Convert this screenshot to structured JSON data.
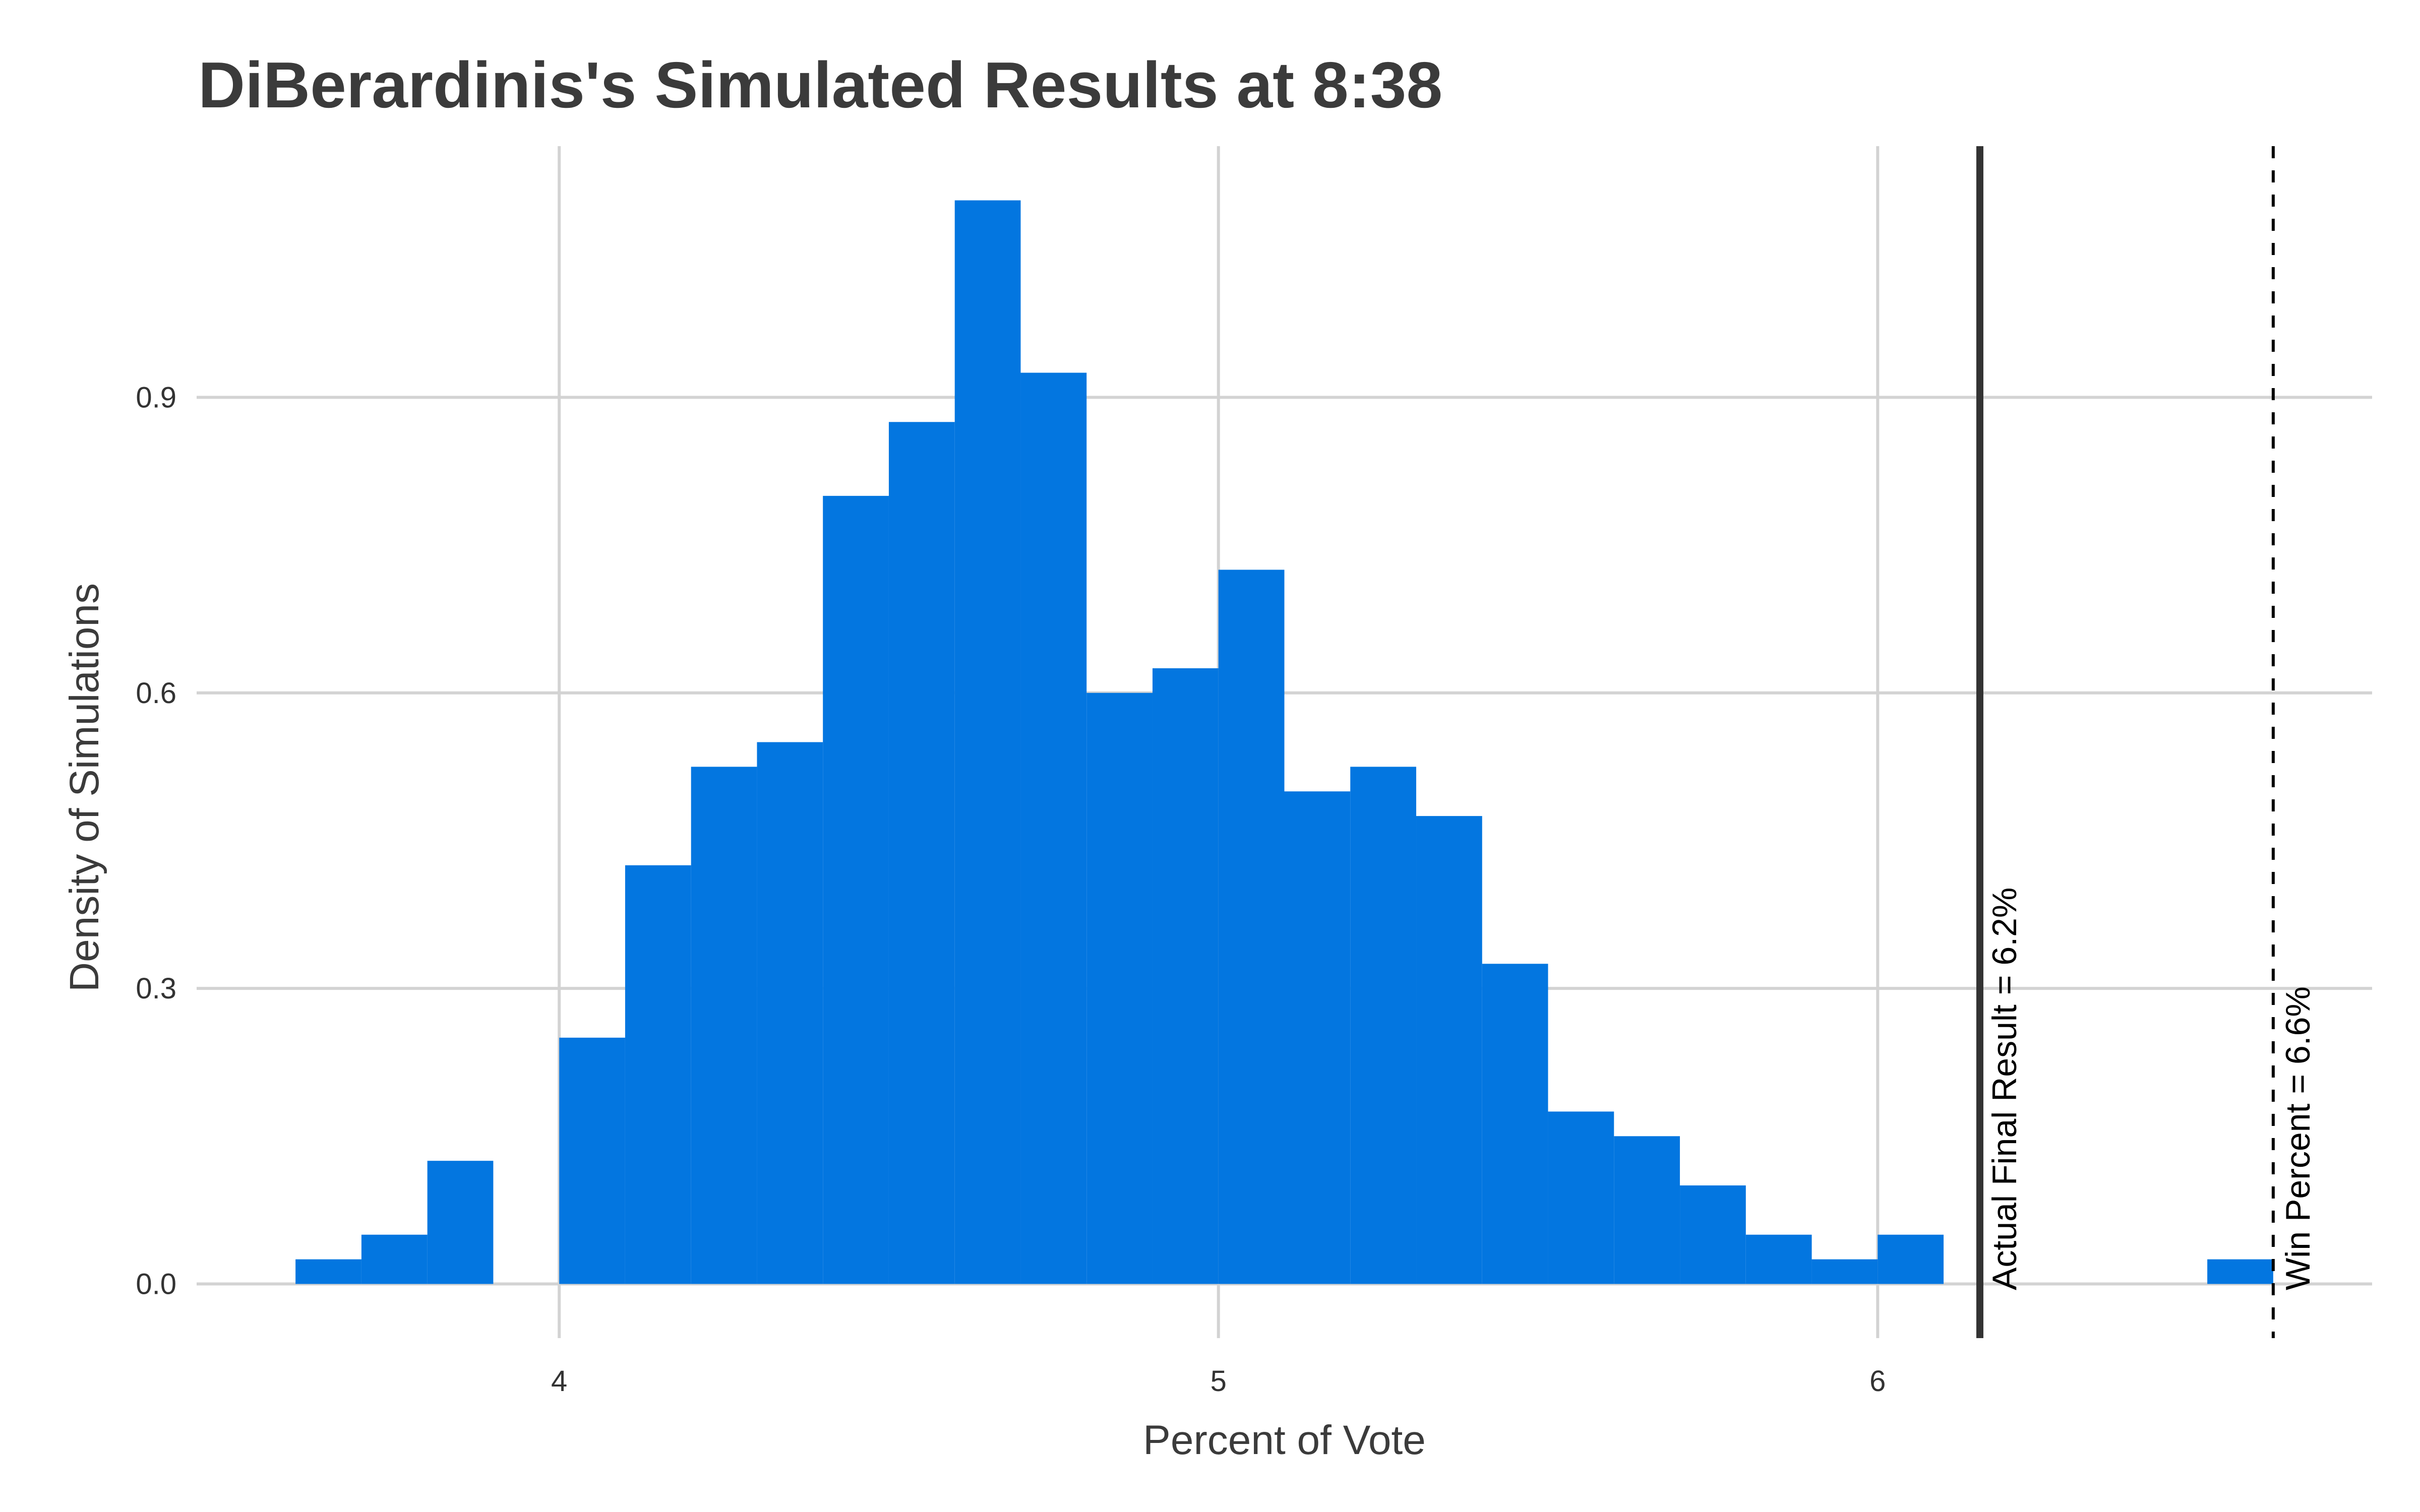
{
  "chart_data": {
    "type": "bar",
    "title": "DiBerardinis's Simulated Results at 8:38",
    "xlabel": "Percent of Vote",
    "ylabel": "Density of Simulations",
    "xlim": [
      3.45,
      6.75
    ],
    "ylim": [
      -0.055,
      1.155
    ],
    "x_ticks": [
      4,
      5,
      6
    ],
    "x_tick_labels": [
      "4",
      "5",
      "6"
    ],
    "y_ticks": [
      0.0,
      0.3,
      0.6,
      0.9
    ],
    "y_tick_labels": [
      "0.0",
      "0.3",
      "0.6",
      "0.9"
    ],
    "grid": true,
    "bin_width": 0.1,
    "bins": [
      {
        "x0": 3.6,
        "x1": 3.7,
        "density": 0.025
      },
      {
        "x0": 3.7,
        "x1": 3.8,
        "density": 0.05
      },
      {
        "x0": 3.8,
        "x1": 3.9,
        "density": 0.125
      },
      {
        "x0": 3.9,
        "x1": 4.0,
        "density": 0.0
      },
      {
        "x0": 4.0,
        "x1": 4.1,
        "density": 0.25
      },
      {
        "x0": 4.1,
        "x1": 4.2,
        "density": 0.425
      },
      {
        "x0": 4.2,
        "x1": 4.3,
        "density": 0.525
      },
      {
        "x0": 4.3,
        "x1": 4.4,
        "density": 0.55
      },
      {
        "x0": 4.4,
        "x1": 4.5,
        "density": 0.8
      },
      {
        "x0": 4.5,
        "x1": 4.6,
        "density": 0.875
      },
      {
        "x0": 4.6,
        "x1": 4.7,
        "density": 1.1
      },
      {
        "x0": 4.7,
        "x1": 4.8,
        "density": 0.925
      },
      {
        "x0": 4.8,
        "x1": 4.9,
        "density": 0.6
      },
      {
        "x0": 4.9,
        "x1": 5.0,
        "density": 0.625
      },
      {
        "x0": 5.0,
        "x1": 5.1,
        "density": 0.725
      },
      {
        "x0": 5.1,
        "x1": 5.2,
        "density": 0.5
      },
      {
        "x0": 5.2,
        "x1": 5.3,
        "density": 0.525
      },
      {
        "x0": 5.3,
        "x1": 5.4,
        "density": 0.475
      },
      {
        "x0": 5.4,
        "x1": 5.5,
        "density": 0.325
      },
      {
        "x0": 5.5,
        "x1": 5.6,
        "density": 0.175
      },
      {
        "x0": 5.6,
        "x1": 5.7,
        "density": 0.15
      },
      {
        "x0": 5.7,
        "x1": 5.8,
        "density": 0.1
      },
      {
        "x0": 5.8,
        "x1": 5.9,
        "density": 0.05
      },
      {
        "x0": 5.9,
        "x1": 6.0,
        "density": 0.025
      },
      {
        "x0": 6.0,
        "x1": 6.1,
        "density": 0.05
      },
      {
        "x0": 6.5,
        "x1": 6.6,
        "density": 0.025
      }
    ],
    "reference_lines": [
      {
        "value": 6.155,
        "label": "Actual Final Result = 6.2%",
        "style": "solid",
        "color": "#333333"
      },
      {
        "value": 6.6,
        "label": "Win Percent = 6.6%",
        "style": "dashed",
        "color": "#000000"
      }
    ],
    "bar_color": "#0376e0",
    "grid_color": "#d3d3d3"
  }
}
